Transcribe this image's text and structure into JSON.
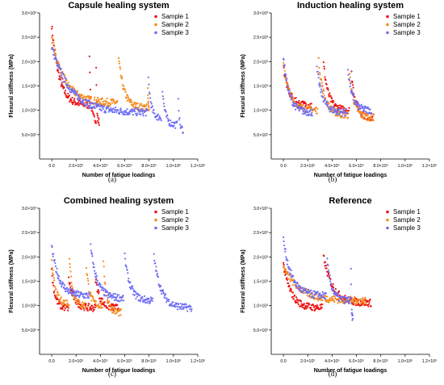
{
  "figure": {
    "captions": [
      "(a)",
      "(b)",
      "(c)",
      "(d)"
    ]
  },
  "colors": {
    "sample1": "#ee1111",
    "sample2": "#f58a1f",
    "sample3": "#6f6ff5"
  },
  "chart_data": [
    {
      "type": "scatter",
      "title": "Capsule healing system",
      "xlabel": "Number of fatigue loadings",
      "ylabel": "Flexural stiffness (MPa)",
      "xlim": [
        -100000,
        1200000
      ],
      "ylim": [
        0,
        3000
      ],
      "xticks": [
        0,
        200000,
        400000,
        600000,
        800000,
        1000000,
        1200000
      ],
      "xtick_labels": [
        "0.0",
        "2.0×10⁵",
        "4.0×10⁵",
        "6.0×10⁵",
        "8.0×10⁵",
        "1.0×10⁶",
        "1.2×10⁶"
      ],
      "yticks": [
        500,
        1000,
        1500,
        2000,
        2500,
        3000
      ],
      "ytick_labels": [
        "5.0×10²",
        "1.0×10³",
        "1.5×10³",
        "2.0×10³",
        "2.5×10³",
        "3.0×10³"
      ],
      "legend_position": "top-right",
      "series": [
        {
          "name": "Sample 1",
          "segments": [
            {
              "x_start": 0,
              "x_end": 310000,
              "y_start": 2750,
              "y_end": 1100
            },
            {
              "x_start": 310000,
              "x_end": 365000,
              "y_start": 2150,
              "y_end": 800
            },
            {
              "x_start": 365000,
              "x_end": 390000,
              "y_start": 1950,
              "y_end": 750
            }
          ]
        },
        {
          "name": "Sample 2",
          "segments": [
            {
              "x_start": 0,
              "x_end": 540000,
              "y_start": 2500,
              "y_end": 1150
            },
            {
              "x_start": 550000,
              "x_end": 780000,
              "y_start": 2050,
              "y_end": 1050
            },
            {
              "x_start": 790000,
              "x_end": 800000,
              "y_start": 1450,
              "y_end": 1050
            }
          ]
        },
        {
          "name": "Sample 3",
          "segments": [
            {
              "x_start": 0,
              "x_end": 785000,
              "y_start": 2300,
              "y_end": 950
            },
            {
              "x_start": 795000,
              "x_end": 900000,
              "y_start": 1650,
              "y_end": 850
            },
            {
              "x_start": 910000,
              "x_end": 1030000,
              "y_start": 1400,
              "y_end": 700
            },
            {
              "x_start": 1040000,
              "x_end": 1080000,
              "y_start": 1300,
              "y_end": 600
            }
          ]
        }
      ]
    },
    {
      "type": "scatter",
      "title": "Induction healing system",
      "xlabel": "Number of fatigue loadings",
      "ylabel": "Flexural stiffness (MPa)",
      "xlim": [
        -100000,
        1200000
      ],
      "ylim": [
        0,
        3000
      ],
      "xticks": [
        0,
        200000,
        400000,
        600000,
        800000,
        1000000,
        1200000
      ],
      "xtick_labels": [
        "0.0",
        "2.0×10⁵",
        "4.0×10⁵",
        "6.0×10⁵",
        "8.0×10⁵",
        "1.0×10⁶",
        "1.2×10⁶"
      ],
      "yticks": [
        500,
        1000,
        1500,
        2000,
        2500,
        3000
      ],
      "ytick_labels": [
        "5.0×10²",
        "1.0×10³",
        "1.5×10³",
        "2.0×10³",
        "2.5×10³",
        "3.0×10³"
      ],
      "legend_position": "top-right",
      "series": [
        {
          "name": "Sample 1",
          "segments": [
            {
              "x_start": 0,
              "x_end": 230000,
              "y_start": 1900,
              "y_end": 1100
            },
            {
              "x_start": 330000,
              "x_end": 540000,
              "y_start": 1950,
              "y_end": 1000
            },
            {
              "x_start": 560000,
              "x_end": 740000,
              "y_start": 1750,
              "y_end": 850
            }
          ]
        },
        {
          "name": "Sample 2",
          "segments": [
            {
              "x_start": 0,
              "x_end": 280000,
              "y_start": 1950,
              "y_end": 1000
            },
            {
              "x_start": 290000,
              "x_end": 530000,
              "y_start": 2000,
              "y_end": 900
            },
            {
              "x_start": 545000,
              "x_end": 740000,
              "y_start": 1700,
              "y_end": 850
            }
          ]
        },
        {
          "name": "Sample 3",
          "segments": [
            {
              "x_start": 0,
              "x_end": 240000,
              "y_start": 2100,
              "y_end": 950
            },
            {
              "x_start": 275000,
              "x_end": 520000,
              "y_start": 1850,
              "y_end": 950
            },
            {
              "x_start": 530000,
              "x_end": 720000,
              "y_start": 1850,
              "y_end": 1000
            }
          ]
        }
      ]
    },
    {
      "type": "scatter",
      "title": "Combined healing system",
      "xlabel": "Number of fatigue loadings",
      "ylabel": "Flexural stiffness (MPa)",
      "xlim": [
        -100000,
        1200000
      ],
      "ylim": [
        0,
        3000
      ],
      "xticks": [
        0,
        200000,
        400000,
        600000,
        800000,
        1000000,
        1200000
      ],
      "xtick_labels": [
        "0.0",
        "2.0×10⁵",
        "4.0×10⁵",
        "6.0×10⁵",
        "8.0×10⁵",
        "1.0×10⁶",
        "1.2×10⁶"
      ],
      "yticks": [
        500,
        1000,
        1500,
        2000,
        2500,
        3000
      ],
      "ytick_labels": [
        "5.0×10²",
        "1.0×10³",
        "1.5×10³",
        "2.0×10³",
        "2.5×10³",
        "3.0×10³"
      ],
      "legend_position": "top-right",
      "series": [
        {
          "name": "Sample 1",
          "segments": [
            {
              "x_start": 0,
              "x_end": 140000,
              "y_start": 1700,
              "y_end": 950
            },
            {
              "x_start": 140000,
              "x_end": 360000,
              "y_start": 1550,
              "y_end": 950
            },
            {
              "x_start": 360000,
              "x_end": 550000,
              "y_start": 1550,
              "y_end": 950
            }
          ]
        },
        {
          "name": "Sample 2",
          "segments": [
            {
              "x_start": 0,
              "x_end": 140000,
              "y_start": 1950,
              "y_end": 1050
            },
            {
              "x_start": 145000,
              "x_end": 280000,
              "y_start": 2000,
              "y_end": 1000
            },
            {
              "x_start": 285000,
              "x_end": 420000,
              "y_start": 1800,
              "y_end": 1000
            },
            {
              "x_start": 425000,
              "x_end": 570000,
              "y_start": 1850,
              "y_end": 850
            }
          ]
        },
        {
          "name": "Sample 3",
          "segments": [
            {
              "x_start": 0,
              "x_end": 310000,
              "y_start": 2200,
              "y_end": 1200
            },
            {
              "x_start": 320000,
              "x_end": 590000,
              "y_start": 2200,
              "y_end": 1150
            },
            {
              "x_start": 600000,
              "x_end": 830000,
              "y_start": 2000,
              "y_end": 1100
            },
            {
              "x_start": 840000,
              "x_end": 1150000,
              "y_start": 2000,
              "y_end": 950
            }
          ]
        }
      ]
    },
    {
      "type": "scatter",
      "title": "Reference",
      "xlabel": "Number of fatigue loadings",
      "ylabel": "Flexural stiffness (MPa)",
      "xlim": [
        -100000,
        1200000
      ],
      "ylim": [
        0,
        3000
      ],
      "xticks": [
        0,
        200000,
        400000,
        600000,
        800000,
        1000000,
        1200000
      ],
      "xtick_labels": [
        "0.0",
        "2.0×10⁵",
        "4.0×10⁵",
        "6.0×10⁵",
        "8.0×10⁵",
        "1.0×10⁶",
        "1.2×10⁶"
      ],
      "yticks": [
        500,
        1000,
        1500,
        2000,
        2500,
        3000
      ],
      "ytick_labels": [
        "5.0×10²",
        "1.0×10³",
        "1.5×10³",
        "2.0×10³",
        "2.5×10³",
        "3.0×10³"
      ],
      "legend_position": "top-right",
      "series": [
        {
          "name": "Sample 1",
          "segments": [
            {
              "x_start": 0,
              "x_end": 320000,
              "y_start": 1850,
              "y_end": 950
            },
            {
              "x_start": 330000,
              "x_end": 720000,
              "y_start": 2000,
              "y_end": 1050
            }
          ]
        },
        {
          "name": "Sample 2",
          "segments": [
            {
              "x_start": 0,
              "x_end": 680000,
              "y_start": 1800,
              "y_end": 1100
            }
          ]
        },
        {
          "name": "Sample 3",
          "segments": [
            {
              "x_start": 0,
              "x_end": 350000,
              "y_start": 2350,
              "y_end": 1200
            },
            {
              "x_start": 360000,
              "x_end": 550000,
              "y_start": 1900,
              "y_end": 1100
            },
            {
              "x_start": 555000,
              "x_end": 570000,
              "y_start": 1750,
              "y_end": 750
            }
          ]
        }
      ]
    }
  ]
}
